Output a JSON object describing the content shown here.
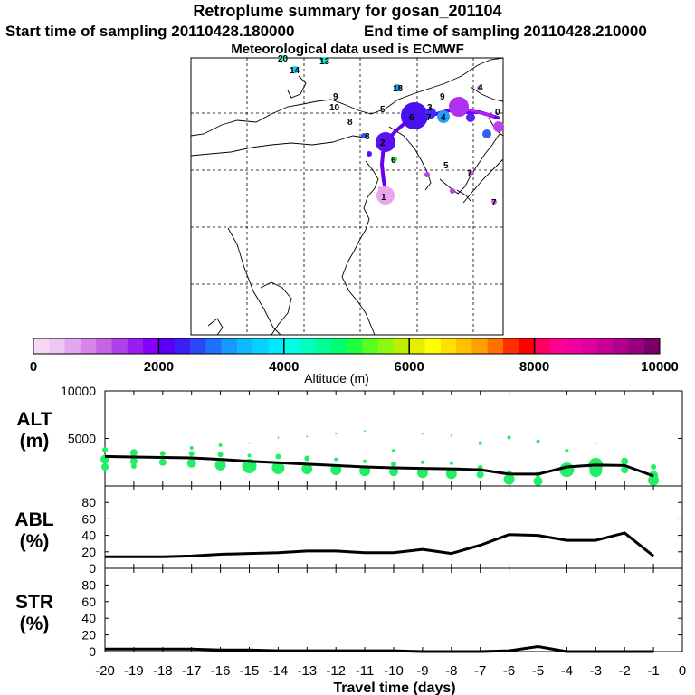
{
  "header": {
    "title": "Retroplume summary for gosan_201104",
    "start_label": "Start time of sampling 20110428.180000",
    "end_label": "End time of sampling 20110428.210000",
    "met_label": "Meteorological data used is ECMWF"
  },
  "colorbar": {
    "tick_labels": [
      "0",
      "2000",
      "4000",
      "6000",
      "8000",
      "10000"
    ],
    "label": "Altitude (m)",
    "colors": [
      "#f4d8f6",
      "#eec6f2",
      "#e4a6ee",
      "#d884ea",
      "#c664e6",
      "#b040ec",
      "#9a1ef4",
      "#8400fc",
      "#5a00f6",
      "#3a20f4",
      "#2a48f8",
      "#2070ff",
      "#1898ff",
      "#10b8ff",
      "#08d0ff",
      "#00e8ff",
      "#00ffe4",
      "#00ffc0",
      "#00ff98",
      "#00ff70",
      "#20ff40",
      "#58ff20",
      "#90f810",
      "#bcf000",
      "#e2f000",
      "#ffff00",
      "#ffe000",
      "#ffc000",
      "#ffa000",
      "#ff7000",
      "#ff3000",
      "#ff0000",
      "#ff0060",
      "#ff0090",
      "#f000a0",
      "#e000a0",
      "#c80096",
      "#b0008c",
      "#98007c",
      "#7a0068"
    ]
  },
  "map": {
    "labels": [
      "20",
      "14",
      "13",
      "18",
      "9",
      "10",
      "8",
      "5",
      "2",
      "6",
      "3",
      "7",
      "4",
      "9",
      "4",
      "0",
      "1",
      "5",
      "8",
      "6",
      "7",
      "7"
    ]
  },
  "chart_data": [
    {
      "type": "line",
      "panel": "ALT",
      "ylabel_line1": "ALT",
      "ylabel_line2": "(m)",
      "ylim": [
        0,
        10000
      ],
      "yticks": [
        0,
        5000,
        10000
      ],
      "ytick_labels": [
        "5000",
        "10000"
      ],
      "x": [
        -20,
        -19,
        -18,
        -17,
        -16,
        -15,
        -14,
        -13,
        -12,
        -11,
        -10,
        -9,
        -8,
        -7,
        -6,
        -5,
        -4,
        -3,
        -2,
        -1
      ],
      "values": [
        3100,
        3050,
        3000,
        2950,
        2800,
        2600,
        2450,
        2300,
        2150,
        2000,
        1900,
        1850,
        1800,
        1700,
        1250,
        1250,
        2000,
        2200,
        2150,
        1050
      ],
      "points": [
        {
          "x": -20,
          "y": 3800,
          "s": 3
        },
        {
          "x": -20,
          "y": 2800,
          "s": 5
        },
        {
          "x": -20,
          "y": 2000,
          "s": 4
        },
        {
          "x": -19,
          "y": 3500,
          "s": 4
        },
        {
          "x": -19,
          "y": 2600,
          "s": 4
        },
        {
          "x": -19,
          "y": 2100,
          "s": 3
        },
        {
          "x": -18,
          "y": 3400,
          "s": 3
        },
        {
          "x": -18,
          "y": 2500,
          "s": 4
        },
        {
          "x": -17,
          "y": 4000,
          "s": 2
        },
        {
          "x": -17,
          "y": 3400,
          "s": 3
        },
        {
          "x": -17,
          "y": 2400,
          "s": 5
        },
        {
          "x": -16,
          "y": 4300,
          "s": 2
        },
        {
          "x": -16,
          "y": 3300,
          "s": 3
        },
        {
          "x": -16,
          "y": 2200,
          "s": 6
        },
        {
          "x": -15,
          "y": 4500,
          "s": 1
        },
        {
          "x": -15,
          "y": 3200,
          "s": 2
        },
        {
          "x": -15,
          "y": 2100,
          "s": 8
        },
        {
          "x": -14,
          "y": 5100,
          "s": 1
        },
        {
          "x": -14,
          "y": 3100,
          "s": 3
        },
        {
          "x": -14,
          "y": 1900,
          "s": 7
        },
        {
          "x": -13,
          "y": 5200,
          "s": 1
        },
        {
          "x": -13,
          "y": 2900,
          "s": 3
        },
        {
          "x": -13,
          "y": 1800,
          "s": 6
        },
        {
          "x": -12,
          "y": 5500,
          "s": 1
        },
        {
          "x": -12,
          "y": 2800,
          "s": 2
        },
        {
          "x": -12,
          "y": 1700,
          "s": 6
        },
        {
          "x": -11,
          "y": 5800,
          "s": 1
        },
        {
          "x": -11,
          "y": 2600,
          "s": 2
        },
        {
          "x": -11,
          "y": 1600,
          "s": 6
        },
        {
          "x": -10,
          "y": 3700,
          "s": 2
        },
        {
          "x": -10,
          "y": 2300,
          "s": 3
        },
        {
          "x": -10,
          "y": 1500,
          "s": 5
        },
        {
          "x": -9,
          "y": 5500,
          "s": 1
        },
        {
          "x": -9,
          "y": 2500,
          "s": 2
        },
        {
          "x": -9,
          "y": 1400,
          "s": 6
        },
        {
          "x": -8,
          "y": 5300,
          "s": 1
        },
        {
          "x": -8,
          "y": 2400,
          "s": 2
        },
        {
          "x": -8,
          "y": 1300,
          "s": 6
        },
        {
          "x": -7,
          "y": 4500,
          "s": 2
        },
        {
          "x": -7,
          "y": 1900,
          "s": 3
        },
        {
          "x": -7,
          "y": 1200,
          "s": 4
        },
        {
          "x": -6,
          "y": 5100,
          "s": 2
        },
        {
          "x": -6,
          "y": 1400,
          "s": 3
        },
        {
          "x": -6,
          "y": 700,
          "s": 6
        },
        {
          "x": -5,
          "y": 4700,
          "s": 2
        },
        {
          "x": -5,
          "y": 1200,
          "s": 3
        },
        {
          "x": -5,
          "y": 500,
          "s": 5
        },
        {
          "x": -4,
          "y": 3700,
          "s": 2
        },
        {
          "x": -4,
          "y": 1700,
          "s": 8
        },
        {
          "x": -3,
          "y": 4500,
          "s": 1
        },
        {
          "x": -3,
          "y": 2200,
          "s": 8
        },
        {
          "x": -3,
          "y": 1600,
          "s": 7
        },
        {
          "x": -2,
          "y": 2600,
          "s": 4
        },
        {
          "x": -2,
          "y": 1700,
          "s": 4
        },
        {
          "x": -1,
          "y": 2000,
          "s": 3
        },
        {
          "x": -1,
          "y": 1100,
          "s": 5
        },
        {
          "x": -1,
          "y": 600,
          "s": 6
        }
      ]
    },
    {
      "type": "line",
      "panel": "ABL",
      "ylabel_line1": "ABL",
      "ylabel_line2": "(%)",
      "ylim": [
        0,
        100
      ],
      "yticks": [
        0,
        20,
        40,
        60,
        80
      ],
      "ytick_labels": [
        "0",
        "20",
        "40",
        "60",
        "80"
      ],
      "x": [
        -20,
        -19,
        -18,
        -17,
        -16,
        -15,
        -14,
        -13,
        -12,
        -11,
        -10,
        -9,
        -8,
        -7,
        -6,
        -5,
        -4,
        -3,
        -2,
        -1
      ],
      "values": [
        14,
        14,
        14,
        15,
        17,
        18,
        19,
        21,
        21,
        19,
        19,
        23,
        18,
        28,
        41,
        40,
        34,
        34,
        43,
        15
      ]
    },
    {
      "type": "line",
      "panel": "STR",
      "ylabel_line1": "STR",
      "ylabel_line2": "(%)",
      "ylim": [
        0,
        100
      ],
      "yticks": [
        0,
        20,
        40,
        60,
        80
      ],
      "ytick_labels": [
        "0",
        "20",
        "40",
        "60",
        "80"
      ],
      "x": [
        -20,
        -19,
        -18,
        -17,
        -16,
        -15,
        -14,
        -13,
        -12,
        -11,
        -10,
        -9,
        -8,
        -7,
        -6,
        -5,
        -4,
        -3,
        -2,
        -1
      ],
      "values": [
        3,
        3,
        3,
        3,
        2,
        2,
        1,
        1,
        1,
        1,
        1,
        0,
        0,
        0,
        1,
        6,
        0,
        0,
        0,
        0
      ]
    }
  ],
  "xaxis": {
    "ticks": [
      -20,
      -19,
      -18,
      -17,
      -16,
      -15,
      -14,
      -13,
      -12,
      -11,
      -10,
      -9,
      -8,
      -7,
      -6,
      -5,
      -4,
      -3,
      -2,
      -1,
      0
    ],
    "tick_labels": [
      "-20",
      "-19",
      "-18",
      "-17",
      "-16",
      "-15",
      "-14",
      "-13",
      "-12",
      "-11",
      "-10",
      "-9",
      "-8",
      "-7",
      "-6",
      "-5",
      "-4",
      "-3",
      "-2",
      "-1",
      "0"
    ],
    "label": "Travel time (days)"
  },
  "colors": {
    "line": "#000000",
    "dots": "#22ee66"
  }
}
